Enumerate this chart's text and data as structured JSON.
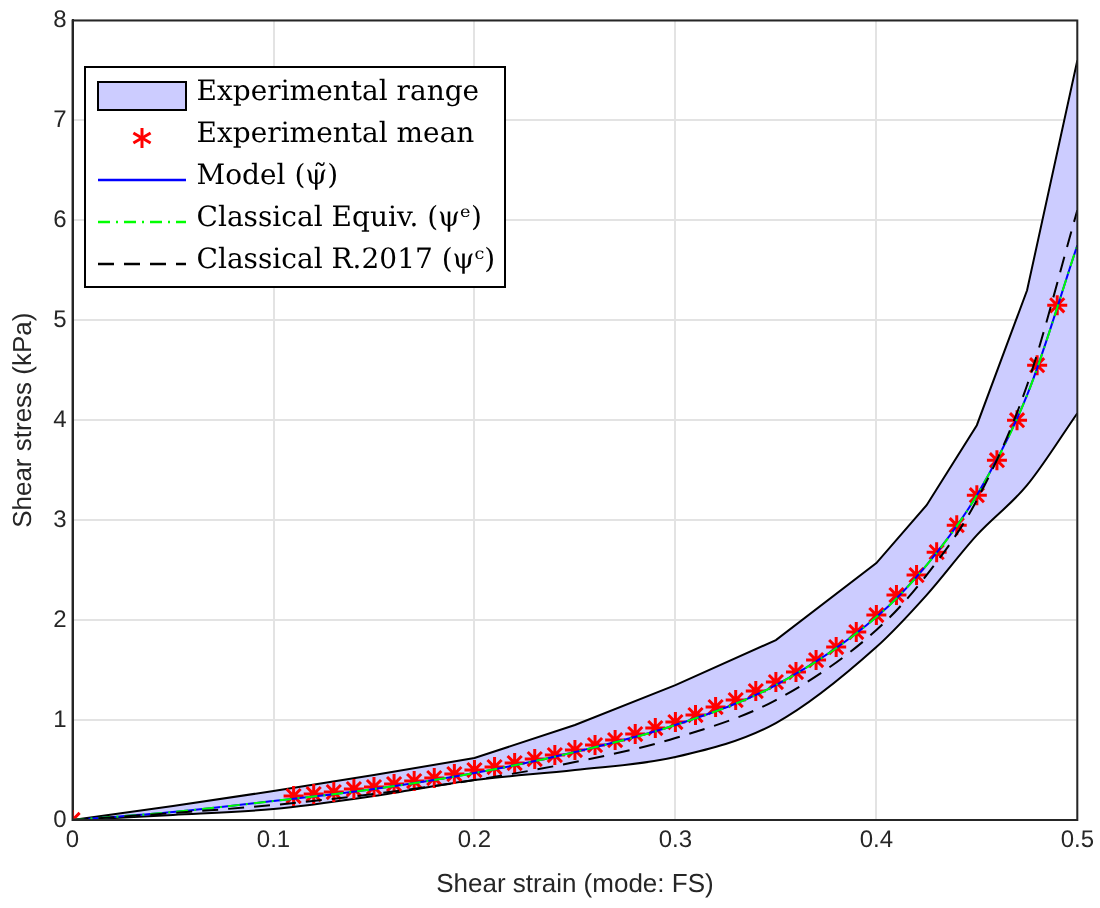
{
  "chart_data": {
    "type": "line",
    "xlabel": "Shear strain (mode: FS)",
    "ylabel": "Shear stress (kPa)",
    "xlim": [
      0,
      0.5
    ],
    "xticks": [
      0,
      0.1,
      0.2,
      0.3,
      0.4,
      0.5
    ],
    "ylim": [
      0,
      8
    ],
    "yticks": [
      0,
      1,
      2,
      3,
      4,
      5,
      6,
      7,
      8
    ],
    "grid": true,
    "legend": "top left",
    "series": [
      {
        "type": "line",
        "color": "#000000",
        "line_style": "solid",
        "x": [
          0,
          0.05,
          0.1,
          0.15,
          0.2,
          0.25,
          0.3,
          0.35,
          0.4,
          0.425,
          0.45,
          0.475,
          0.5
        ],
        "values": [
          0,
          0.05,
          0.11,
          0.24,
          0.4,
          0.5,
          0.63,
          0.97,
          1.73,
          2.25,
          2.85,
          3.35,
          4.07
        ]
      },
      {
        "name": "Experimental range",
        "type": "area",
        "color": "#ccccff",
        "x": [
          0,
          0.05,
          0.1,
          0.15,
          0.2,
          0.25,
          0.3,
          0.35,
          0.4,
          0.425,
          0.45,
          0.475,
          0.5
        ],
        "values": [
          0,
          0.14,
          0.29,
          0.45,
          0.62,
          0.95,
          1.35,
          1.8,
          2.57,
          3.15,
          3.95,
          5.3,
          7.6
        ]
      },
      {
        "name": "Experimental mean",
        "type": "scatter",
        "color": "#ff0000",
        "marker": "cross",
        "x": [
          0,
          0.11,
          0.12,
          0.13,
          0.14,
          0.15,
          0.16,
          0.17,
          0.18,
          0.19,
          0.2,
          0.21,
          0.22,
          0.23,
          0.24,
          0.25,
          0.26,
          0.27,
          0.28,
          0.29,
          0.3,
          0.31,
          0.32,
          0.33,
          0.34,
          0.35,
          0.36,
          0.37,
          0.38,
          0.39,
          0.4,
          0.41,
          0.42,
          0.43,
          0.44,
          0.45,
          0.46,
          0.47,
          0.48,
          0.49
        ],
        "values": [
          0,
          0.24,
          0.26,
          0.28,
          0.31,
          0.33,
          0.36,
          0.39,
          0.42,
          0.46,
          0.5,
          0.53,
          0.57,
          0.61,
          0.65,
          0.7,
          0.75,
          0.8,
          0.86,
          0.92,
          0.98,
          1.05,
          1.13,
          1.2,
          1.29,
          1.38,
          1.48,
          1.6,
          1.73,
          1.88,
          2.05,
          2.25,
          2.45,
          2.68,
          2.95,
          3.25,
          3.6,
          4.0,
          4.55,
          5.15
        ]
      },
      {
        "name": "Model (ψ̃)",
        "type": "line",
        "color": "#0000ff",
        "line_style": "solid",
        "x": [
          0,
          0.05,
          0.1,
          0.15,
          0.2,
          0.25,
          0.3,
          0.35,
          0.4,
          0.425,
          0.45,
          0.475,
          0.5
        ],
        "values": [
          0,
          0.08,
          0.19,
          0.31,
          0.47,
          0.68,
          0.95,
          1.35,
          2.03,
          2.55,
          3.25,
          4.25,
          5.75
        ]
      },
      {
        "name": "Classical Equiv. (ψᵉ)",
        "type": "line",
        "color": "#00ff00",
        "line_style": "dotted",
        "x": [
          0,
          0.05,
          0.1,
          0.15,
          0.2,
          0.25,
          0.3,
          0.35,
          0.4,
          0.425,
          0.45,
          0.475,
          0.5
        ],
        "values": [
          0,
          0.08,
          0.19,
          0.31,
          0.47,
          0.68,
          0.95,
          1.35,
          2.03,
          2.55,
          3.25,
          4.25,
          5.75
        ]
      },
      {
        "name": "Classical R.2017 (ψᶜ)",
        "type": "line",
        "color": "#000000",
        "line_style": "dashed",
        "x": [
          0,
          0.05,
          0.1,
          0.15,
          0.2,
          0.25,
          0.3,
          0.35,
          0.4,
          0.425,
          0.45,
          0.475,
          0.5
        ],
        "values": [
          0,
          0.07,
          0.15,
          0.26,
          0.4,
          0.58,
          0.82,
          1.2,
          1.9,
          2.45,
          3.2,
          4.35,
          6.1
        ]
      }
    ]
  }
}
